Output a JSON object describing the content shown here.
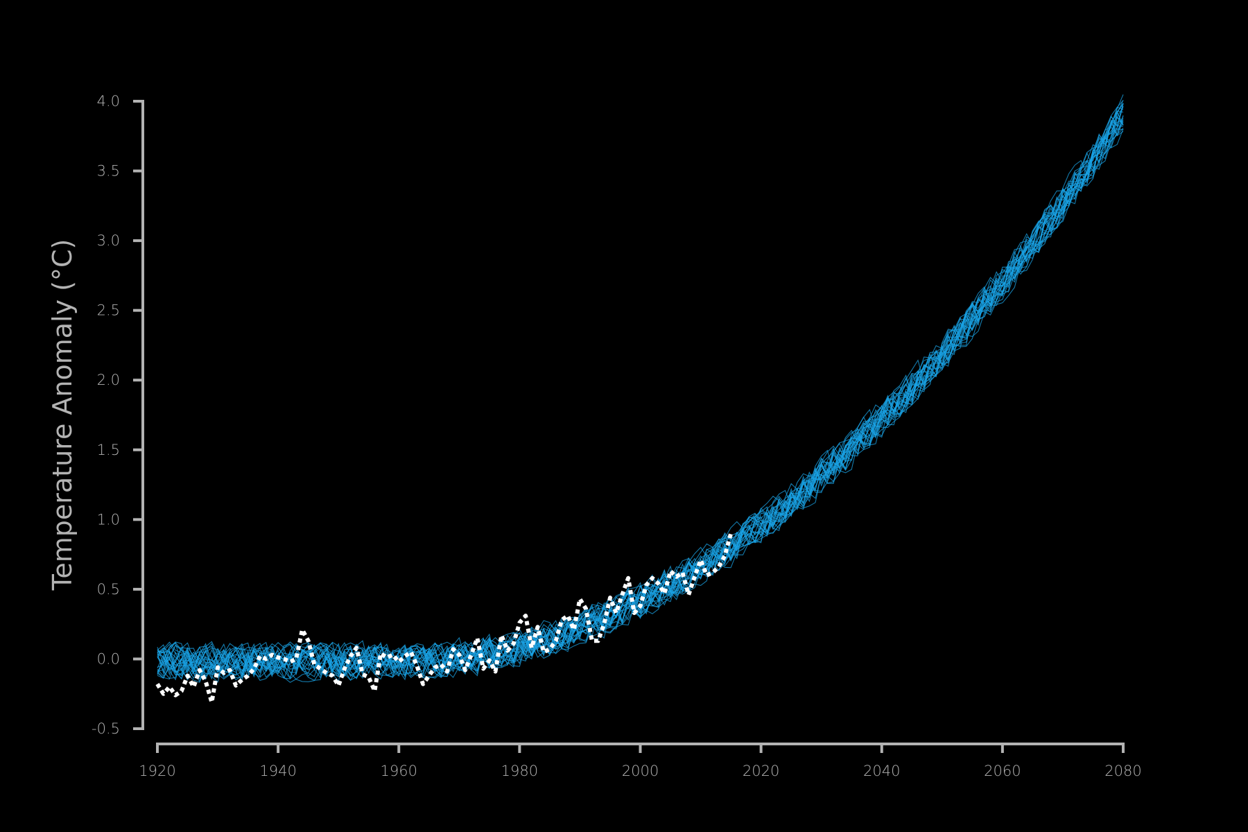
{
  "chart_data": {
    "type": "line",
    "title": "",
    "xlabel": "",
    "ylabel": "Temperature Anomaly (°C)",
    "xlim": [
      1920,
      2080
    ],
    "ylim": [
      -0.5,
      4.0
    ],
    "x_ticks": [
      1920,
      1940,
      1960,
      1980,
      2000,
      2020,
      2040,
      2060,
      2080
    ],
    "x_tick_labels": [
      "1920",
      "1940",
      "1960",
      "1980",
      "2000",
      "2020",
      "2040",
      "2060",
      "2080"
    ],
    "y_ticks": [
      -0.5,
      0.0,
      0.5,
      1.0,
      1.5,
      2.0,
      2.5,
      3.0,
      3.5,
      4.0
    ],
    "y_tick_labels": [
      "-0.5",
      "0.0",
      "0.5",
      "1.0",
      "1.5",
      "2.0",
      "2.5",
      "3.0",
      "3.5",
      "4.0"
    ],
    "grid": false,
    "legend": "none",
    "colors": {
      "background": "#000000",
      "axis": "#b3b3b3",
      "ensemble": "#1aa3e6",
      "observed": "#ffffff"
    },
    "series": [
      {
        "style": "dotted-white",
        "x": [
          1920,
          1921,
          1922,
          1923,
          1924,
          1925,
          1926,
          1927,
          1928,
          1929,
          1930,
          1931,
          1932,
          1933,
          1934,
          1935,
          1936,
          1937,
          1938,
          1939,
          1940,
          1941,
          1942,
          1943,
          1944,
          1945,
          1946,
          1947,
          1948,
          1949,
          1950,
          1951,
          1952,
          1953,
          1954,
          1955,
          1956,
          1957,
          1958,
          1959,
          1960,
          1961,
          1962,
          1963,
          1964,
          1965,
          1966,
          1967,
          1968,
          1969,
          1970,
          1971,
          1972,
          1973,
          1974,
          1975,
          1976,
          1977,
          1978,
          1979,
          1980,
          1981,
          1982,
          1983,
          1984,
          1985,
          1986,
          1987,
          1988,
          1989,
          1990,
          1991,
          1992,
          1993,
          1994,
          1995,
          1996,
          1997,
          1998,
          1999,
          2000,
          2001,
          2002,
          2003,
          2004,
          2005,
          2006,
          2007,
          2008,
          2009,
          2010,
          2011,
          2012,
          2013,
          2014,
          2015
        ],
        "y": [
          -0.18,
          -0.25,
          -0.2,
          -0.26,
          -0.23,
          -0.12,
          -0.2,
          -0.08,
          -0.16,
          -0.31,
          -0.06,
          -0.1,
          -0.08,
          -0.19,
          -0.15,
          -0.12,
          -0.07,
          0.02,
          0.0,
          0.03,
          0.01,
          0.0,
          -0.02,
          0.0,
          0.21,
          0.13,
          -0.04,
          -0.07,
          -0.1,
          -0.12,
          -0.19,
          -0.07,
          0.02,
          0.08,
          -0.11,
          -0.13,
          -0.23,
          0.04,
          0.01,
          0.03,
          -0.02,
          0.02,
          0.05,
          -0.05,
          -0.18,
          -0.12,
          -0.06,
          -0.04,
          -0.09,
          0.07,
          0.03,
          -0.08,
          0.03,
          0.15,
          -0.07,
          -0.01,
          -0.09,
          0.17,
          0.06,
          0.11,
          0.26,
          0.31,
          0.08,
          0.23,
          0.05,
          0.07,
          0.13,
          0.28,
          0.31,
          0.21,
          0.43,
          0.36,
          0.13,
          0.13,
          0.25,
          0.44,
          0.33,
          0.46,
          0.58,
          0.33,
          0.38,
          0.53,
          0.58,
          0.54,
          0.47,
          0.63,
          0.59,
          0.62,
          0.46,
          0.59,
          0.71,
          0.6,
          0.62,
          0.66,
          0.74,
          0.9
        ]
      }
    ],
    "ensemble": {
      "members": 26,
      "style": "thin-cyan",
      "years": [
        1920,
        2080
      ],
      "mean_curve": {
        "base": -0.02,
        "onset_year": 1960,
        "quadratic_coef": 0.000272
      },
      "noise_amplitude": 0.07
    }
  }
}
